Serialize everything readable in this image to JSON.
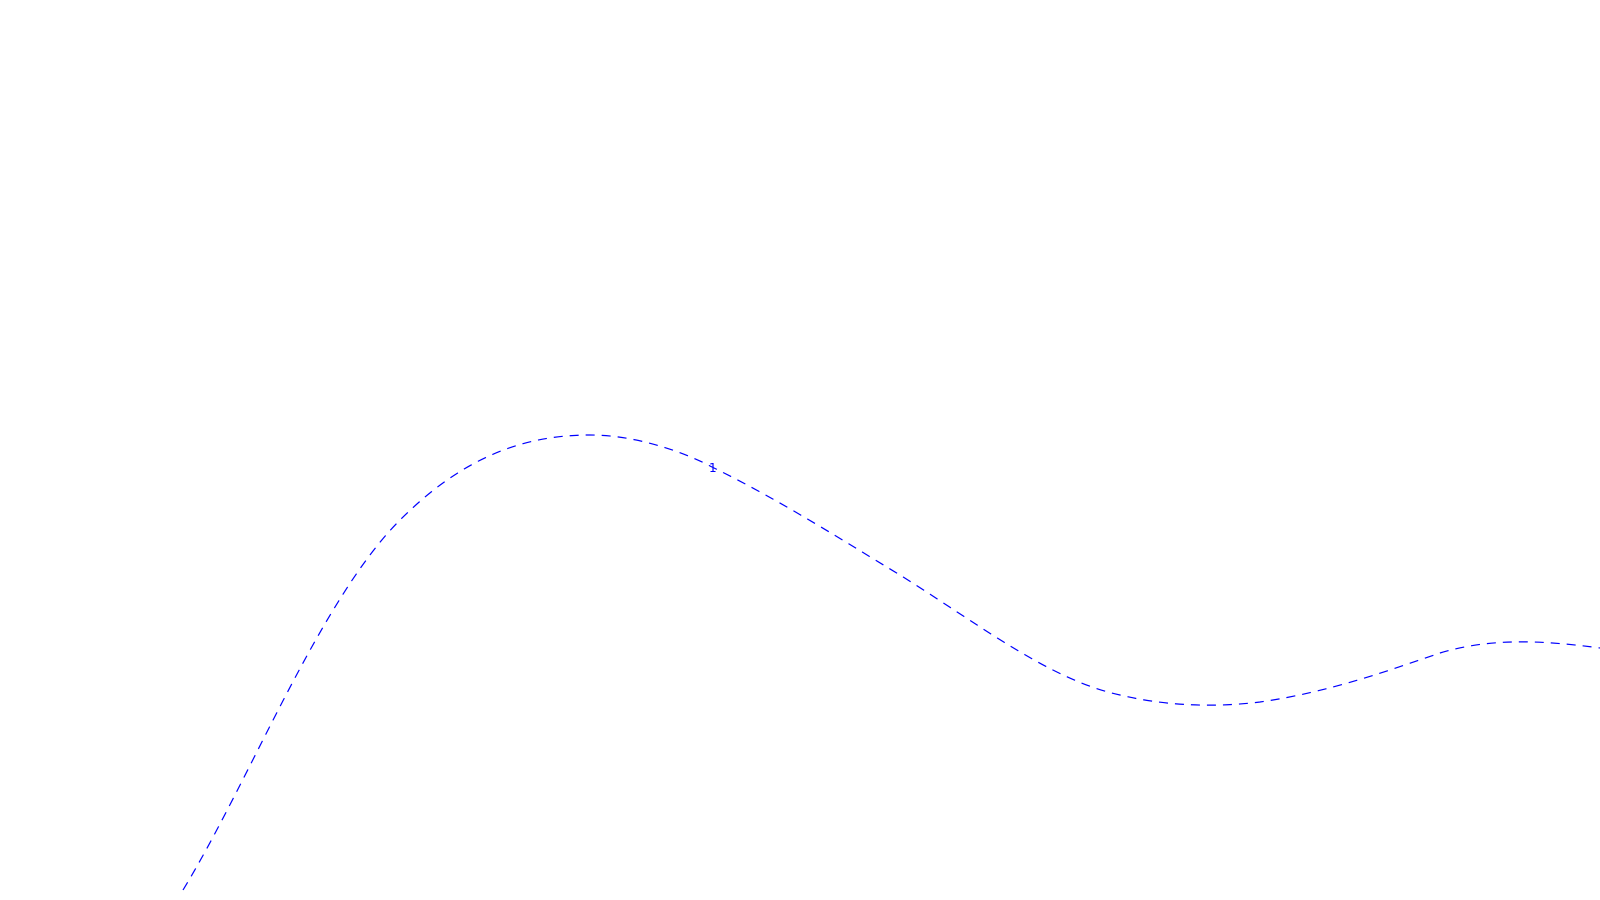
{
  "curve": {
    "label": "1",
    "stroke_color": "#0000ff",
    "line_style": "dashed"
  }
}
